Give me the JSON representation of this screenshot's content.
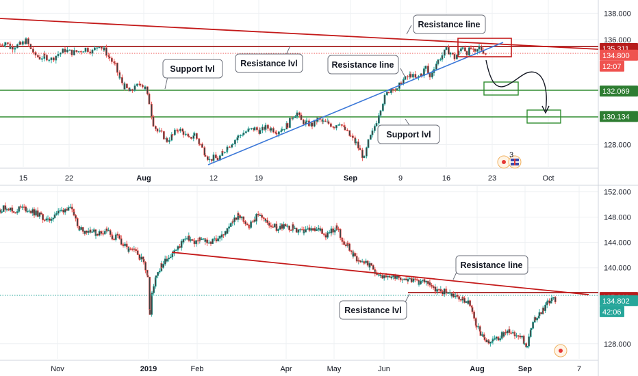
{
  "colors": {
    "up": "#26a69a",
    "down": "#ef5350",
    "candle_body": "#3f3f3f",
    "resistance": "#c41a1a",
    "support": "#2e8b2e",
    "trendline": "#3c78d8",
    "grid": "#eef0f3",
    "axis_bg": "#ffffff",
    "last_price": "#ef5350",
    "callout_border": "#6b6f7a"
  },
  "chart_data": [
    {
      "type": "candlestick",
      "timeframe": "daily",
      "x_ticks": [
        "15",
        "22",
        "Aug",
        "12",
        "19",
        "Sep",
        "9",
        "16",
        "23",
        "Oct"
      ],
      "y_ticks": [
        "138.000",
        "136.000",
        "128.000"
      ],
      "ylim": [
        126.3,
        138.8
      ],
      "price_tags": [
        {
          "id": "resistance",
          "value": 135.311,
          "label": "135.311",
          "color": "#b71c1c"
        },
        {
          "id": "last",
          "value": 134.8,
          "label": "134.800",
          "color": "#ef5350"
        },
        {
          "id": "countdown",
          "label": "12:07",
          "color": "#ef5350"
        },
        {
          "id": "support1",
          "value": 132.069,
          "label": "132.069",
          "color": "#2e7d32"
        },
        {
          "id": "support2",
          "value": 130.134,
          "label": "130.134",
          "color": "#2e7d32"
        }
      ],
      "series": [
        {
          "points": [
            [
              0,
              135.6
            ],
            [
              8,
              135.8
            ],
            [
              15,
              135.4
            ],
            [
              22,
              135.5
            ],
            [
              30,
              135.6
            ],
            [
              38,
              135.9
            ],
            [
              45,
              135.3
            ],
            [
              52,
              134.8
            ],
            [
              58,
              134.6
            ],
            [
              65,
              134.7
            ],
            [
              75,
              134.5
            ],
            [
              85,
              134.9
            ],
            [
              95,
              135.2
            ],
            [
              105,
              135.0
            ],
            [
              115,
              135.1
            ],
            [
              125,
              135.3
            ],
            [
              135,
              135.1
            ],
            [
              145,
              135.6
            ],
            [
              152,
              135.2
            ],
            [
              160,
              134.6
            ],
            [
              168,
              134.0
            ],
            [
              175,
              133.0
            ],
            [
              182,
              132.4
            ],
            [
              190,
              132.0
            ],
            [
              197,
              132.3
            ],
            [
              205,
              132.7
            ],
            [
              212,
              132.3
            ],
            [
              218,
              131.2
            ],
            [
              224,
              129.6
            ],
            [
              230,
              129.0
            ],
            [
              236,
              128.8
            ],
            [
              244,
              128.3
            ],
            [
              252,
              128.7
            ],
            [
              260,
              129.2
            ],
            [
              268,
              128.9
            ],
            [
              276,
              128.4
            ],
            [
              284,
              128.8
            ],
            [
              292,
              128.0
            ],
            [
              300,
              127.3
            ],
            [
              306,
              126.8
            ],
            [
              312,
              127.0
            ],
            [
              318,
              126.9
            ],
            [
              325,
              127.3
            ],
            [
              332,
              127.8
            ],
            [
              340,
              128.2
            ],
            [
              348,
              128.6
            ],
            [
              356,
              128.9
            ],
            [
              364,
              129.1
            ],
            [
              372,
              129.2
            ],
            [
              380,
              129.0
            ],
            [
              388,
              129.3
            ],
            [
              396,
              129.2
            ],
            [
              404,
              129.0
            ],
            [
              412,
              129.2
            ],
            [
              420,
              129.5
            ],
            [
              428,
              130.2
            ],
            [
              434,
              130.4
            ],
            [
              440,
              129.8
            ],
            [
              448,
              129.6
            ],
            [
              456,
              129.5
            ],
            [
              464,
              129.9
            ],
            [
              472,
              129.7
            ],
            [
              480,
              129.6
            ],
            [
              488,
              129.4
            ],
            [
              496,
              129.7
            ],
            [
              504,
              129.1
            ],
            [
              512,
              128.6
            ],
            [
              520,
              128.1
            ],
            [
              526,
              127.5
            ],
            [
              532,
              126.9
            ],
            [
              538,
              128.2
            ],
            [
              544,
              128.9
            ],
            [
              550,
              129.8
            ],
            [
              556,
              130.8
            ],
            [
              562,
              131.6
            ],
            [
              568,
              132.1
            ],
            [
              574,
              132.4
            ],
            [
              580,
              132.1
            ],
            [
              586,
              132.8
            ],
            [
              592,
              133.0
            ],
            [
              600,
              133.3
            ],
            [
              608,
              133.0
            ],
            [
              616,
              133.4
            ],
            [
              622,
              133.9
            ],
            [
              628,
              133.1
            ],
            [
              634,
              133.9
            ],
            [
              640,
              134.4
            ],
            [
              646,
              134.8
            ],
            [
              652,
              135.2
            ],
            [
              658,
              135.0
            ],
            [
              664,
              134.6
            ],
            [
              670,
              135.0
            ],
            [
              676,
              135.5
            ],
            [
              682,
              135.0
            ],
            [
              688,
              135.3
            ],
            [
              694,
              134.9
            ],
            [
              700,
              135.4
            ],
            [
              706,
              135.1
            ],
            [
              712,
              134.8
            ]
          ]
        }
      ],
      "annotations": [
        {
          "type": "callout",
          "text": "Resistance line"
        },
        {
          "type": "callout",
          "text": "Support lvl"
        },
        {
          "type": "callout",
          "text": "Resistance lvl"
        },
        {
          "type": "callout",
          "text": "Resistance line"
        },
        {
          "type": "callout",
          "text": "Support lvl"
        }
      ]
    },
    {
      "type": "candlestick",
      "timeframe": "weekly",
      "x_ticks": [
        "Nov",
        "2019",
        "Feb",
        "Apr",
        "May",
        "Jun",
        "Aug",
        "Sep",
        "7"
      ],
      "y_ticks": [
        "152.000",
        "148.000",
        "144.000",
        "140.000",
        "128.000"
      ],
      "ylim": [
        125.6,
        152.5
      ],
      "price_tags": [
        {
          "id": "resistance",
          "value": 135.311,
          "label": "135.311",
          "color": "#b71c1c"
        },
        {
          "id": "last",
          "value": 134.802,
          "label": "134.802",
          "color": "#26a69a"
        },
        {
          "id": "countdown",
          "label": "42:06",
          "color": "#26a69a"
        }
      ],
      "series": [
        {
          "points": [
            [
              0,
              149.2
            ],
            [
              10,
              149.6
            ],
            [
              20,
              148.8
            ],
            [
              30,
              149.5
            ],
            [
              40,
              149.2
            ],
            [
              50,
              148.7
            ],
            [
              60,
              148.2
            ],
            [
              70,
              147.3
            ],
            [
              80,
              148.5
            ],
            [
              90,
              149.0
            ],
            [
              100,
              149.6
            ],
            [
              108,
              148.4
            ],
            [
              116,
              146.3
            ],
            [
              124,
              145.8
            ],
            [
              132,
              146.0
            ],
            [
              140,
              145.4
            ],
            [
              148,
              145.6
            ],
            [
              156,
              146.0
            ],
            [
              164,
              144.7
            ],
            [
              172,
              144.9
            ],
            [
              180,
              143.6
            ],
            [
              188,
              142.7
            ],
            [
              196,
              142.6
            ],
            [
              204,
              141.8
            ],
            [
              210,
              141.0
            ],
            [
              216,
              138.8
            ],
            [
              219,
              132.5
            ],
            [
              222,
              136.0
            ],
            [
              228,
              139.0
            ],
            [
              236,
              140.3
            ],
            [
              244,
              141.5
            ],
            [
              252,
              142.4
            ],
            [
              260,
              143.0
            ],
            [
              268,
              144.4
            ],
            [
              276,
              144.6
            ],
            [
              284,
              144.0
            ],
            [
              292,
              144.4
            ],
            [
              300,
              144.3
            ],
            [
              308,
              144.0
            ],
            [
              316,
              144.6
            ],
            [
              324,
              145.0
            ],
            [
              332,
              145.8
            ],
            [
              340,
              147.4
            ],
            [
              348,
              148.2
            ],
            [
              356,
              147.5
            ],
            [
              364,
              146.6
            ],
            [
              372,
              147.8
            ],
            [
              380,
              148.5
            ],
            [
              388,
              147.2
            ],
            [
              396,
              146.8
            ],
            [
              404,
              146.3
            ],
            [
              412,
              146.6
            ],
            [
              420,
              146.2
            ],
            [
              428,
              146.4
            ],
            [
              436,
              145.6
            ],
            [
              444,
              145.7
            ],
            [
              452,
              146.0
            ],
            [
              460,
              145.8
            ],
            [
              468,
              146.1
            ],
            [
              476,
              145.2
            ],
            [
              484,
              145.9
            ],
            [
              492,
              146.3
            ],
            [
              500,
              144.2
            ],
            [
              508,
              143.6
            ],
            [
              516,
              142.0
            ],
            [
              524,
              141.2
            ],
            [
              532,
              141.0
            ],
            [
              540,
              140.3
            ],
            [
              548,
              139.5
            ],
            [
              556,
              138.8
            ],
            [
              564,
              138.3
            ],
            [
              572,
              138.6
            ],
            [
              580,
              138.8
            ],
            [
              588,
              138.4
            ],
            [
              596,
              138.2
            ],
            [
              604,
              137.8
            ],
            [
              612,
              137.6
            ],
            [
              620,
              138.0
            ],
            [
              628,
              137.5
            ],
            [
              636,
              136.6
            ],
            [
              644,
              136.2
            ],
            [
              652,
              136.3
            ],
            [
              660,
              135.8
            ],
            [
              668,
              135.4
            ],
            [
              676,
              135.0
            ],
            [
              684,
              134.6
            ],
            [
              690,
              133.2
            ],
            [
              696,
              131.0
            ],
            [
              702,
              129.3
            ],
            [
              708,
              128.6
            ],
            [
              714,
              128.0
            ],
            [
              720,
              128.4
            ],
            [
              728,
              128.9
            ],
            [
              736,
              129.6
            ],
            [
              744,
              130.1
            ],
            [
              752,
              129.7
            ],
            [
              760,
              129.4
            ],
            [
              766,
              128.0
            ],
            [
              770,
              127.8
            ],
            [
              776,
              130.4
            ],
            [
              782,
              132.0
            ],
            [
              788,
              132.8
            ],
            [
              794,
              133.6
            ],
            [
              800,
              134.6
            ],
            [
              806,
              134.9
            ],
            [
              812,
              135.0
            ]
          ]
        }
      ],
      "annotations": [
        {
          "type": "callout",
          "text": "Resistance line"
        },
        {
          "type": "callout",
          "text": "Resistance lvl"
        }
      ]
    }
  ],
  "panes": {
    "top_callouts": {
      "resistance_line_1": "Resistance line",
      "support_lvl_1": "Support lvl",
      "resistance_lvl": "Resistance lvl",
      "resistance_line_2": "Resistance line",
      "support_lvl_2": "Support lvl"
    },
    "bottom_callouts": {
      "resistance_line": "Resistance line",
      "resistance_lvl": "Resistance lvl"
    },
    "top_event_badge": "3"
  }
}
